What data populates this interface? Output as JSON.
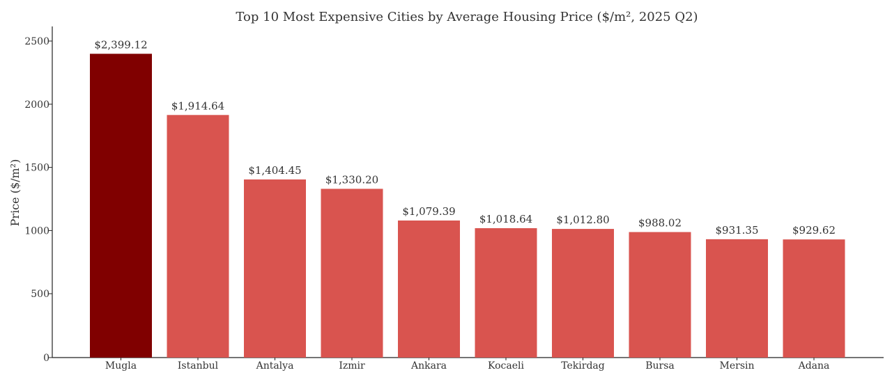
{
  "chart_data": {
    "type": "bar",
    "title": "Top 10 Most Expensive Cities by Average Housing Price ($/m², 2025 Q2)",
    "xlabel": "",
    "ylabel": "Price ($/m²)",
    "ylim": [
      0,
      2500
    ],
    "yticks": [
      0,
      500,
      1000,
      1500,
      2000,
      2500
    ],
    "grid": false,
    "categories": [
      "Mugla",
      "Istanbul",
      "Antalya",
      "Izmir",
      "Ankara",
      "Kocaeli",
      "Tekirdag",
      "Bursa",
      "Mersin",
      "Adana"
    ],
    "values": [
      2399.12,
      1914.64,
      1404.45,
      1330.2,
      1079.39,
      1018.64,
      1012.8,
      988.02,
      931.35,
      929.62
    ],
    "value_labels": [
      "$2,399.12",
      "$1,914.64",
      "$1,404.45",
      "$1,330.20",
      "$1,079.39",
      "$1,018.64",
      "$1,012.80",
      "$988.02",
      "$931.35",
      "$929.62"
    ],
    "colors": {
      "highlight": "#800000",
      "bar": "#d9544f"
    }
  }
}
